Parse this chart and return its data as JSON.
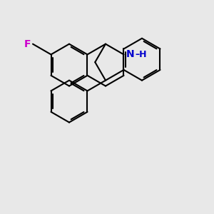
{
  "background_color": "#e8e8e8",
  "bond_color": "#000000",
  "N_color": "#0000cc",
  "F_color": "#cc00cc",
  "line_width": 1.5,
  "dbo": 0.08,
  "font_size_atom": 10,
  "figsize": [
    3.0,
    3.0
  ],
  "dpi": 100,
  "xlim": [
    0,
    10
  ],
  "ylim": [
    0,
    10
  ]
}
